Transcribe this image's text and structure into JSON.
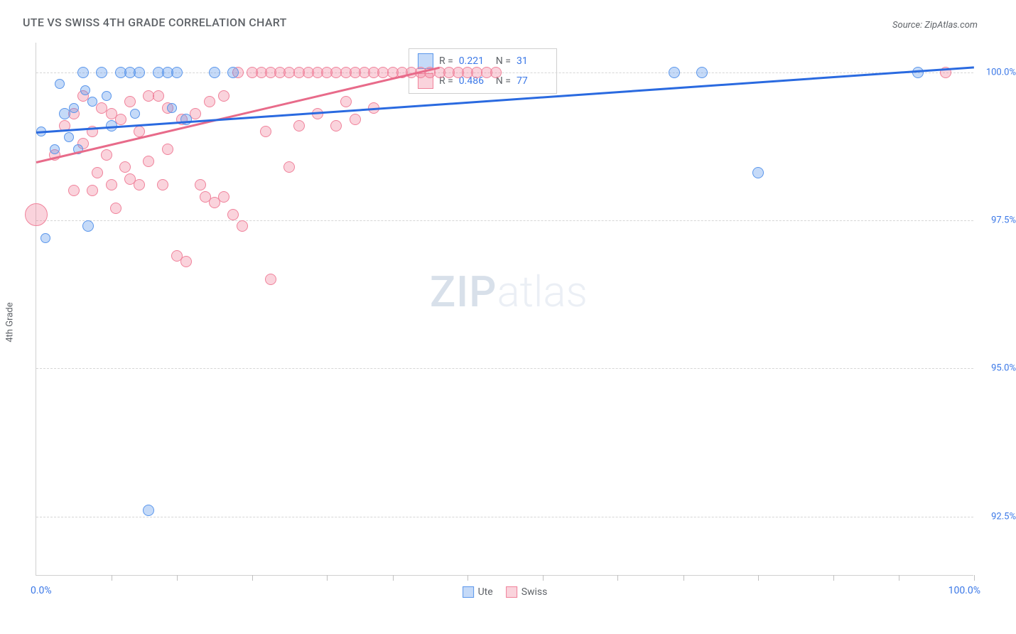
{
  "title": "UTE VS SWISS 4TH GRADE CORRELATION CHART",
  "source": "Source: ZipAtlas.com",
  "ylabel": "4th Grade",
  "watermark": {
    "zip": "ZIP",
    "atlas": "atlas"
  },
  "chart": {
    "type": "scatter",
    "xlim": [
      0,
      100
    ],
    "ylim": [
      91.5,
      100.5
    ],
    "xaxis_label_left": "0.0%",
    "xaxis_label_right": "100.0%",
    "yticks": [
      92.5,
      95.0,
      97.5,
      100.0
    ],
    "ytick_labels": [
      "92.5%",
      "95.0%",
      "97.5%",
      "100.0%"
    ],
    "xtick_positions": [
      8,
      15,
      23,
      31,
      38,
      46,
      54,
      62,
      69,
      77,
      85,
      92,
      100
    ],
    "series": {
      "ute": {
        "label": "Ute",
        "fill": "rgba(90,150,235,0.35)",
        "stroke": "#5a96eb",
        "points": [
          {
            "x": 1,
            "y": 97.2,
            "r": 7
          },
          {
            "x": 3,
            "y": 99.3,
            "r": 8
          },
          {
            "x": 5,
            "y": 100,
            "r": 8
          },
          {
            "x": 5.5,
            "y": 97.4,
            "r": 8
          },
          {
            "x": 7,
            "y": 100,
            "r": 8
          },
          {
            "x": 8,
            "y": 99.1,
            "r": 8
          },
          {
            "x": 9,
            "y": 100,
            "r": 8
          },
          {
            "x": 10,
            "y": 100,
            "r": 8
          },
          {
            "x": 11,
            "y": 100,
            "r": 8
          },
          {
            "x": 12,
            "y": 92.6,
            "r": 8
          },
          {
            "x": 13,
            "y": 100,
            "r": 8
          },
          {
            "x": 14,
            "y": 100,
            "r": 8
          },
          {
            "x": 15,
            "y": 100,
            "r": 8
          },
          {
            "x": 16,
            "y": 99.2,
            "r": 8
          },
          {
            "x": 19,
            "y": 100,
            "r": 8
          },
          {
            "x": 21,
            "y": 100,
            "r": 8
          },
          {
            "x": 4,
            "y": 99.4,
            "r": 7
          },
          {
            "x": 6,
            "y": 99.5,
            "r": 7
          },
          {
            "x": 3.5,
            "y": 98.9,
            "r": 7
          },
          {
            "x": 2,
            "y": 98.7,
            "r": 7
          },
          {
            "x": 4.5,
            "y": 98.7,
            "r": 7
          },
          {
            "x": 7.5,
            "y": 99.6,
            "r": 7
          },
          {
            "x": 10.5,
            "y": 99.3,
            "r": 7
          },
          {
            "x": 14.5,
            "y": 99.4,
            "r": 7
          },
          {
            "x": 68,
            "y": 100,
            "r": 8
          },
          {
            "x": 71,
            "y": 100,
            "r": 8
          },
          {
            "x": 77,
            "y": 98.3,
            "r": 8
          },
          {
            "x": 94,
            "y": 100,
            "r": 8
          },
          {
            "x": 0.5,
            "y": 99.0,
            "r": 7
          },
          {
            "x": 2.5,
            "y": 99.8,
            "r": 7
          },
          {
            "x": 5.2,
            "y": 99.7,
            "r": 7
          }
        ],
        "trend": {
          "x1": 0,
          "y1": 99.0,
          "x2": 100,
          "y2": 100.1,
          "color": "#2a6ae0"
        }
      },
      "swiss": {
        "label": "Swiss",
        "fill": "rgba(240,130,155,0.35)",
        "stroke": "#f0829b",
        "points": [
          {
            "x": 0,
            "y": 97.6,
            "r": 16
          },
          {
            "x": 2,
            "y": 98.6,
            "r": 8
          },
          {
            "x": 3,
            "y": 99.1,
            "r": 8
          },
          {
            "x": 4,
            "y": 99.3,
            "r": 8
          },
          {
            "x": 5,
            "y": 98.8,
            "r": 8
          },
          {
            "x": 5,
            "y": 99.6,
            "r": 8
          },
          {
            "x": 6,
            "y": 99.0,
            "r": 8
          },
          {
            "x": 6.5,
            "y": 98.3,
            "r": 8
          },
          {
            "x": 7,
            "y": 99.4,
            "r": 8
          },
          {
            "x": 7.5,
            "y": 98.6,
            "r": 8
          },
          {
            "x": 8,
            "y": 99.3,
            "r": 8
          },
          {
            "x": 8,
            "y": 98.1,
            "r": 8
          },
          {
            "x": 9,
            "y": 99.2,
            "r": 8
          },
          {
            "x": 9.5,
            "y": 98.4,
            "r": 8
          },
          {
            "x": 10,
            "y": 99.5,
            "r": 8
          },
          {
            "x": 10,
            "y": 98.2,
            "r": 8
          },
          {
            "x": 11,
            "y": 99.0,
            "r": 8
          },
          {
            "x": 11,
            "y": 98.1,
            "r": 8
          },
          {
            "x": 12,
            "y": 99.6,
            "r": 8
          },
          {
            "x": 12,
            "y": 98.5,
            "r": 8
          },
          {
            "x": 13,
            "y": 99.6,
            "r": 8
          },
          {
            "x": 13.5,
            "y": 98.1,
            "r": 8
          },
          {
            "x": 14,
            "y": 99.4,
            "r": 8
          },
          {
            "x": 14,
            "y": 98.7,
            "r": 8
          },
          {
            "x": 15,
            "y": 96.9,
            "r": 8
          },
          {
            "x": 15.5,
            "y": 99.2,
            "r": 8
          },
          {
            "x": 16,
            "y": 96.8,
            "r": 8
          },
          {
            "x": 17,
            "y": 99.3,
            "r": 8
          },
          {
            "x": 17.5,
            "y": 98.1,
            "r": 8
          },
          {
            "x": 18,
            "y": 97.9,
            "r": 8
          },
          {
            "x": 18.5,
            "y": 99.5,
            "r": 8
          },
          {
            "x": 19,
            "y": 97.8,
            "r": 8
          },
          {
            "x": 20,
            "y": 97.9,
            "r": 8
          },
          {
            "x": 20,
            "y": 99.6,
            "r": 8
          },
          {
            "x": 21,
            "y": 97.6,
            "r": 8
          },
          {
            "x": 21.5,
            "y": 100,
            "r": 8
          },
          {
            "x": 22,
            "y": 97.4,
            "r": 8
          },
          {
            "x": 23,
            "y": 100,
            "r": 8
          },
          {
            "x": 24,
            "y": 100,
            "r": 8
          },
          {
            "x": 24.5,
            "y": 99.0,
            "r": 8
          },
          {
            "x": 25,
            "y": 96.5,
            "r": 8
          },
          {
            "x": 25,
            "y": 100,
            "r": 8
          },
          {
            "x": 26,
            "y": 100,
            "r": 8
          },
          {
            "x": 27,
            "y": 98.4,
            "r": 8
          },
          {
            "x": 27,
            "y": 100,
            "r": 8
          },
          {
            "x": 28,
            "y": 99.1,
            "r": 8
          },
          {
            "x": 28,
            "y": 100,
            "r": 8
          },
          {
            "x": 29,
            "y": 100,
            "r": 8
          },
          {
            "x": 30,
            "y": 99.3,
            "r": 8
          },
          {
            "x": 30,
            "y": 100,
            "r": 8
          },
          {
            "x": 31,
            "y": 100,
            "r": 8
          },
          {
            "x": 32,
            "y": 99.1,
            "r": 8
          },
          {
            "x": 32,
            "y": 100,
            "r": 8
          },
          {
            "x": 33,
            "y": 99.5,
            "r": 8
          },
          {
            "x": 33,
            "y": 100,
            "r": 8
          },
          {
            "x": 34,
            "y": 99.2,
            "r": 8
          },
          {
            "x": 34,
            "y": 100,
            "r": 8
          },
          {
            "x": 35,
            "y": 100,
            "r": 8
          },
          {
            "x": 36,
            "y": 99.4,
            "r": 8
          },
          {
            "x": 36,
            "y": 100,
            "r": 8
          },
          {
            "x": 37,
            "y": 100,
            "r": 8
          },
          {
            "x": 38,
            "y": 100,
            "r": 8
          },
          {
            "x": 39,
            "y": 100,
            "r": 8
          },
          {
            "x": 40,
            "y": 100,
            "r": 8
          },
          {
            "x": 41,
            "y": 100,
            "r": 8
          },
          {
            "x": 42,
            "y": 100,
            "r": 8
          },
          {
            "x": 43,
            "y": 100,
            "r": 8
          },
          {
            "x": 44,
            "y": 100,
            "r": 8
          },
          {
            "x": 45,
            "y": 100,
            "r": 8
          },
          {
            "x": 46,
            "y": 100,
            "r": 8
          },
          {
            "x": 47,
            "y": 100,
            "r": 8
          },
          {
            "x": 48,
            "y": 100,
            "r": 8
          },
          {
            "x": 49,
            "y": 100,
            "r": 8
          },
          {
            "x": 97,
            "y": 100,
            "r": 8
          },
          {
            "x": 4,
            "y": 98.0,
            "r": 8
          },
          {
            "x": 6,
            "y": 98.0,
            "r": 8
          },
          {
            "x": 8.5,
            "y": 97.7,
            "r": 8
          }
        ],
        "trend": {
          "x1": 0,
          "y1": 98.5,
          "x2": 43,
          "y2": 100.1,
          "color": "#e86b8a"
        }
      }
    },
    "legend_box": {
      "rows": [
        {
          "swatch_fill": "rgba(90,150,235,0.35)",
          "swatch_stroke": "#5a96eb",
          "r_label": "R =",
          "r_val": "0.221",
          "n_label": "N =",
          "n_val": "31"
        },
        {
          "swatch_fill": "rgba(240,130,155,0.35)",
          "swatch_stroke": "#f0829b",
          "r_label": "R =",
          "r_val": "0.486",
          "n_label": "N =",
          "n_val": "77"
        }
      ]
    },
    "bottom_legend": [
      {
        "swatch_fill": "rgba(90,150,235,0.35)",
        "swatch_stroke": "#5a96eb",
        "label": "Ute"
      },
      {
        "swatch_fill": "rgba(240,130,155,0.35)",
        "swatch_stroke": "#f0829b",
        "label": "Swiss"
      }
    ]
  }
}
